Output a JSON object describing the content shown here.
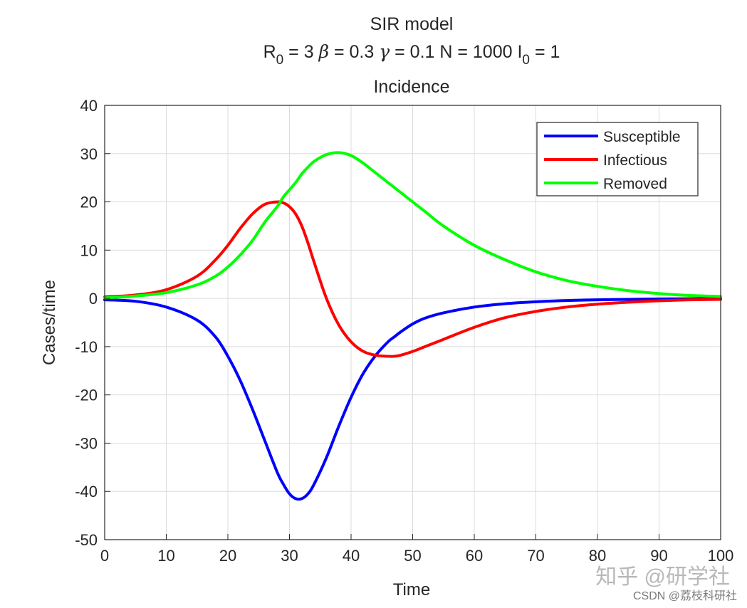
{
  "chart_data": {
    "type": "line",
    "title": "SIR model",
    "subtitle": {
      "r_label": "R",
      "r_sub": "0",
      "r_value": " = 3  ",
      "beta_symbol": "β",
      "beta_value": " = 0.3  ",
      "gamma_symbol": "γ",
      "gamma_value": " = 0.1  N = 1000  I",
      "i_sub": "0",
      "i_value": " = 1"
    },
    "panel_title": "Incidence",
    "xlabel": "Time",
    "ylabel": "Cases/time",
    "xlim": [
      0,
      100
    ],
    "ylim": [
      -50,
      40
    ],
    "xticks": [
      0,
      10,
      20,
      30,
      40,
      50,
      60,
      70,
      80,
      90,
      100
    ],
    "yticks": [
      40,
      30,
      20,
      10,
      0,
      -10,
      -20,
      -30,
      -40,
      -50
    ],
    "grid": true,
    "legend_position": "top-right",
    "x": [
      0,
      5,
      10,
      15,
      18,
      20,
      22,
      24,
      26,
      28,
      29,
      30,
      31,
      32,
      33,
      34,
      36,
      38,
      40,
      42,
      44,
      46,
      47,
      48,
      50,
      52,
      55,
      60,
      65,
      70,
      75,
      80,
      85,
      90,
      95,
      100
    ],
    "series": [
      {
        "name": "Susceptible",
        "color": "#0000ff",
        "values": [
          -0.3,
          -0.6,
          -1.8,
          -4.5,
          -8,
          -12,
          -17,
          -23,
          -29.5,
          -36,
          -38.5,
          -40.5,
          -41.5,
          -41.5,
          -40.5,
          -38.5,
          -33,
          -26.5,
          -20.5,
          -15.5,
          -11.8,
          -9,
          -8,
          -7,
          -5.3,
          -4.1,
          -3,
          -1.8,
          -1.1,
          -0.7,
          -0.45,
          -0.3,
          -0.2,
          -0.12,
          -0.07,
          -0.05
        ]
      },
      {
        "name": "Infectious",
        "color": "#ff0000",
        "values": [
          0.3,
          0.7,
          1.8,
          4.6,
          8,
          11,
          14.5,
          17.5,
          19.5,
          20,
          19.8,
          19,
          17.5,
          15,
          11.5,
          7.5,
          0,
          -5.5,
          -9,
          -11,
          -11.8,
          -12,
          -12,
          -11.8,
          -11,
          -10,
          -8.5,
          -6,
          -4,
          -2.7,
          -1.8,
          -1.2,
          -0.8,
          -0.5,
          -0.3,
          -0.2
        ]
      },
      {
        "name": "Removed",
        "color": "#00ff00",
        "values": [
          0.1,
          0.5,
          1.2,
          2.8,
          4.6,
          6.5,
          9,
          12,
          15.8,
          19,
          21,
          22.5,
          24,
          25.8,
          27.2,
          28.4,
          29.8,
          30.2,
          29.6,
          28,
          26,
          24,
          23,
          22,
          20,
          18,
          15,
          11,
          8,
          5.5,
          3.7,
          2.5,
          1.6,
          1,
          0.6,
          0.4
        ]
      }
    ]
  },
  "watermark": {
    "main": "知乎 @研学社",
    "sub": "CSDN @荔枝科研社"
  }
}
